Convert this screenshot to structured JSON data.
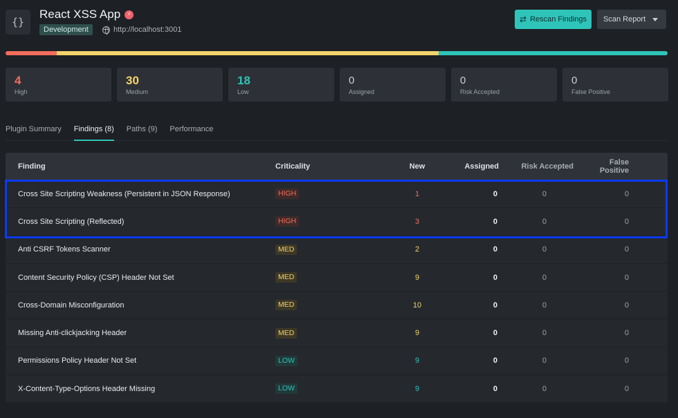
{
  "app": {
    "icon_glyph": "{}",
    "title": "React XSS App",
    "environment": "Development",
    "url": "http://localhost:3001"
  },
  "actions": {
    "rescan_label": "Rescan Findings",
    "report_label": "Scan Report"
  },
  "severity_bar": {
    "high_fraction": 0.077,
    "medium_fraction": 0.577,
    "low_fraction": 0.346
  },
  "stats": [
    {
      "value": "4",
      "label": "High",
      "tone": "high"
    },
    {
      "value": "30",
      "label": "Medium",
      "tone": "medium"
    },
    {
      "value": "18",
      "label": "Low",
      "tone": "low"
    },
    {
      "value": "0",
      "label": "Assigned",
      "tone": "neutral"
    },
    {
      "value": "0",
      "label": "Risk Accepted",
      "tone": "neutral"
    },
    {
      "value": "0",
      "label": "False Positive",
      "tone": "neutral"
    }
  ],
  "tabs": [
    {
      "label": "Plugin Summary",
      "active": false
    },
    {
      "label": "Findings (8)",
      "active": true
    },
    {
      "label": "Paths (9)",
      "active": false
    },
    {
      "label": "Performance",
      "active": false
    }
  ],
  "table": {
    "headers": {
      "finding": "Finding",
      "criticality": "Criticality",
      "new": "New",
      "assigned": "Assigned",
      "risk_accepted": "Risk Accepted",
      "false_positive": "False Positive"
    },
    "rows": [
      {
        "finding": "Cross Site Scripting Weakness (Persistent in JSON Response)",
        "criticality": "HIGH",
        "new": "1",
        "assigned": "0",
        "risk_accepted": "0",
        "false_positive": "0"
      },
      {
        "finding": "Cross Site Scripting (Reflected)",
        "criticality": "HIGH",
        "new": "3",
        "assigned": "0",
        "risk_accepted": "0",
        "false_positive": "0"
      },
      {
        "finding": "Anti CSRF Tokens Scanner",
        "criticality": "MED",
        "new": "2",
        "assigned": "0",
        "risk_accepted": "0",
        "false_positive": "0"
      },
      {
        "finding": "Content Security Policy (CSP) Header Not Set",
        "criticality": "MED",
        "new": "9",
        "assigned": "0",
        "risk_accepted": "0",
        "false_positive": "0"
      },
      {
        "finding": "Cross-Domain Misconfiguration",
        "criticality": "MED",
        "new": "10",
        "assigned": "0",
        "risk_accepted": "0",
        "false_positive": "0"
      },
      {
        "finding": "Missing Anti-clickjacking Header",
        "criticality": "MED",
        "new": "9",
        "assigned": "0",
        "risk_accepted": "0",
        "false_positive": "0"
      },
      {
        "finding": "Permissions Policy Header Not Set",
        "criticality": "LOW",
        "new": "9",
        "assigned": "0",
        "risk_accepted": "0",
        "false_positive": "0"
      },
      {
        "finding": "X-Content-Type-Options Header Missing",
        "criticality": "LOW",
        "new": "9",
        "assigned": "0",
        "risk_accepted": "0",
        "false_positive": "0"
      }
    ]
  },
  "colors": {
    "high": "#f26d5b",
    "medium": "#f4d36b",
    "low": "#2ec4b9",
    "highlight": "#0b3af5"
  }
}
